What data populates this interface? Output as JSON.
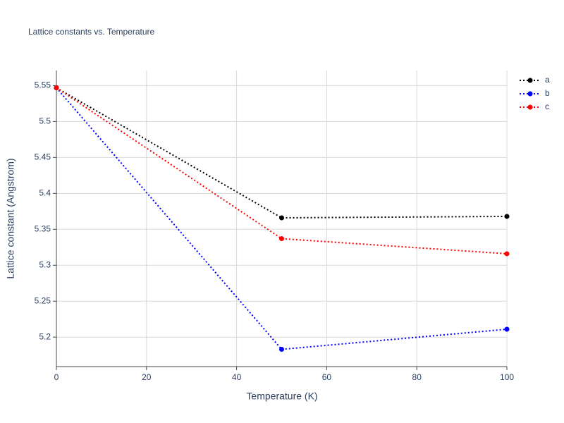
{
  "chart_data": {
    "type": "line",
    "title": "Lattice constants vs. Temperature",
    "x_label": "Temperature (K)",
    "y_label": "Lattice constant (Angstrom)",
    "x": [
      0,
      50,
      100
    ],
    "series": [
      {
        "name": "a",
        "color": "#000000",
        "values": [
          5.547,
          5.366,
          5.368
        ]
      },
      {
        "name": "b",
        "color": "#0000ff",
        "values": [
          5.547,
          5.183,
          5.211
        ]
      },
      {
        "name": "c",
        "color": "#ff0000",
        "values": [
          5.547,
          5.337,
          5.316
        ]
      }
    ],
    "xlim": [
      0,
      100
    ],
    "xticks": [
      0,
      20,
      40,
      60,
      80,
      100
    ],
    "ylim": [
      5.159,
      5.571
    ],
    "yticks": [
      5.2,
      5.25,
      5.3,
      5.35,
      5.4,
      5.45,
      5.5,
      5.55
    ],
    "grid": true,
    "legend": "top-right"
  }
}
